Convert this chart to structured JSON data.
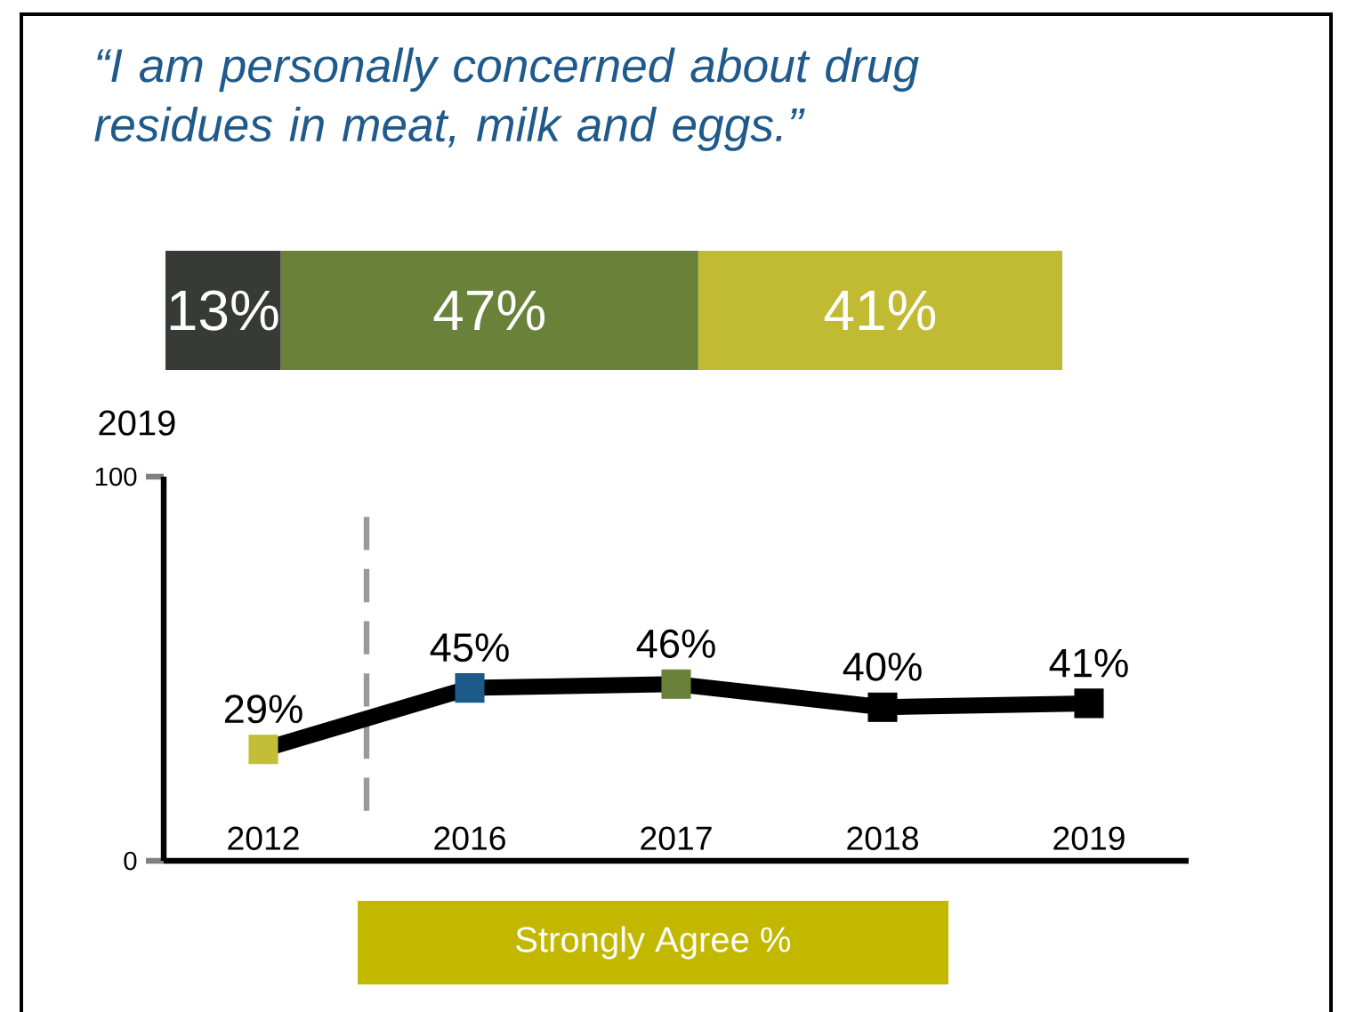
{
  "chart_data": [
    {
      "type": "bar",
      "title": "“I am personally concerned about drug residues in meat, milk and eggs.”",
      "orientation": "horizontal",
      "stacked": true,
      "categories": [
        null
      ],
      "annotations": [
        "2019"
      ],
      "series": [
        {
          "color": "#383a35",
          "values": [
            13
          ],
          "value_labels": [
            "13%"
          ]
        },
        {
          "color": "#6a813a",
          "values": [
            47
          ],
          "value_labels": [
            "47%"
          ]
        },
        {
          "color": "#c1bb33",
          "values": [
            41
          ],
          "value_labels": [
            "41%"
          ]
        }
      ]
    },
    {
      "type": "line",
      "categories": [
        "2012",
        "2016",
        "2017",
        "2018",
        "2019"
      ],
      "values": [
        29,
        45,
        46,
        40,
        41
      ],
      "value_labels": [
        "29%",
        "45%",
        "46%",
        "40%",
        "41%"
      ],
      "color": "#000000",
      "colors": [
        "#c4bd38",
        "#1c5a8a",
        "#6a813a",
        "#000000",
        "#000000"
      ],
      "marker": "square",
      "ylim": [
        0,
        100
      ],
      "yticks": [
        0,
        100
      ],
      "xlabel": "Strongly Agree %"
    }
  ]
}
